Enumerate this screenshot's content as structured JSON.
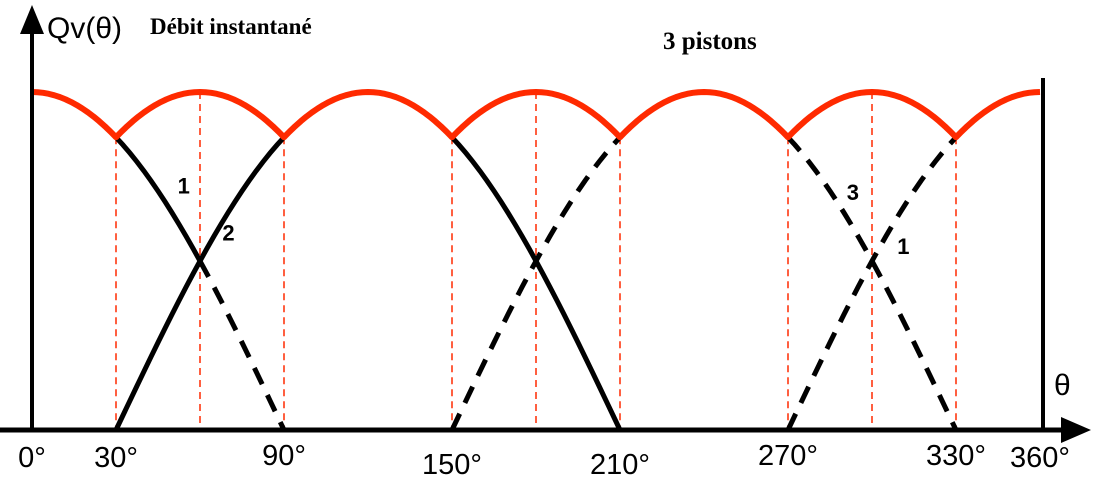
{
  "chart_data": {
    "type": "line",
    "title": "3 pistons",
    "ylabel_symbol": "Qv(θ)",
    "ylabel_text": "Débit  instantané",
    "xlabel": "θ",
    "x_unit": "°",
    "xlim": [
      0,
      360
    ],
    "ylim": [
      0,
      1
    ],
    "x_ticks": [
      0,
      30,
      90,
      150,
      210,
      270,
      330,
      360
    ],
    "x_tick_labels": [
      "0°",
      "30°",
      "90°",
      "150°",
      "210°",
      "270°",
      "330°",
      "360°"
    ],
    "series": [
      {
        "role": "total",
        "color": "#ff2a00",
        "x": [
          0,
          30,
          60,
          90,
          120,
          150,
          180,
          210,
          240,
          270,
          300,
          330,
          360
        ],
        "y": [
          1.0,
          0.866,
          1.0,
          0.866,
          1.0,
          0.866,
          1.0,
          0.866,
          1.0,
          0.866,
          1.0,
          0.866,
          1.0
        ]
      },
      {
        "role": "piston",
        "color": "#000000",
        "x": [
          30,
          60,
          90
        ],
        "y": [
          0.866,
          0.5,
          0.0
        ],
        "solid_until": 60
      },
      {
        "role": "piston",
        "color": "#000000",
        "x": [
          30,
          60,
          90
        ],
        "y": [
          0.0,
          0.5,
          0.866
        ],
        "solid_until": 90
      },
      {
        "role": "piston",
        "color": "#000000",
        "x": [
          150,
          180,
          210
        ],
        "y": [
          0.866,
          0.5,
          0.0
        ],
        "solid_until": 210
      },
      {
        "role": "piston",
        "color": "#000000",
        "x": [
          150,
          180,
          210
        ],
        "y": [
          0.0,
          0.5,
          0.866
        ],
        "solid_until": 150
      },
      {
        "role": "piston",
        "color": "#000000",
        "x": [
          270,
          300,
          330
        ],
        "y": [
          0.866,
          0.5,
          0.0
        ],
        "solid_until": 270
      },
      {
        "role": "piston",
        "color": "#000000",
        "x": [
          270,
          300,
          330
        ],
        "y": [
          0.0,
          0.5,
          0.866
        ],
        "solid_until": 270
      }
    ],
    "annotations": [
      {
        "text": "1",
        "x": 52,
        "y": 0.7
      },
      {
        "text": "2",
        "x": 68,
        "y": 0.56
      },
      {
        "text": "3",
        "x": 291,
        "y": 0.68
      },
      {
        "text": "1",
        "x": 309,
        "y": 0.52
      }
    ],
    "guides": {
      "color": "#ff2a00",
      "style": "dashed",
      "x": [
        30,
        60,
        90,
        150,
        180,
        210,
        270,
        300,
        330
      ]
    },
    "grid": false,
    "legend": "none"
  }
}
